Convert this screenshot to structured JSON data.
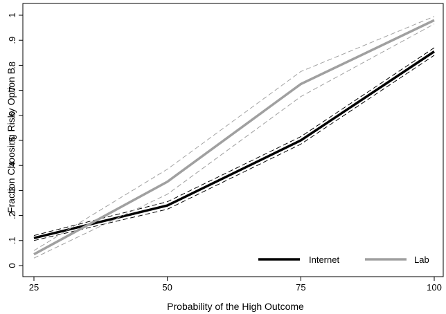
{
  "chart_data": {
    "type": "line",
    "title": "",
    "xlabel": "Probability of the High Outcome",
    "ylabel": "Fraction Choosing Risky Option B",
    "x": [
      25,
      50,
      75,
      100
    ],
    "x_ticks": [
      "25",
      "50",
      "75",
      "100"
    ],
    "y_ticks": [
      "0",
      ".1",
      ".2",
      ".3",
      ".4",
      ".5",
      ".6",
      ".7",
      ".8",
      ".9",
      "1"
    ],
    "xlim": [
      25,
      100
    ],
    "ylim": [
      0,
      1
    ],
    "grid": false,
    "legend_position": "bottom-right",
    "series": [
      {
        "name": "Internet",
        "color": "#000000",
        "values": [
          0.11,
          0.24,
          0.5,
          0.855
        ],
        "ci_lower": [
          0.1,
          0.225,
          0.485,
          0.84
        ],
        "ci_upper": [
          0.12,
          0.255,
          0.515,
          0.87
        ]
      },
      {
        "name": "Lab",
        "color": "#a0a0a0",
        "values": [
          0.045,
          0.335,
          0.725,
          0.98
        ],
        "ci_lower": [
          0.03,
          0.285,
          0.675,
          0.965
        ],
        "ci_upper": [
          0.06,
          0.385,
          0.775,
          0.995
        ]
      }
    ]
  }
}
